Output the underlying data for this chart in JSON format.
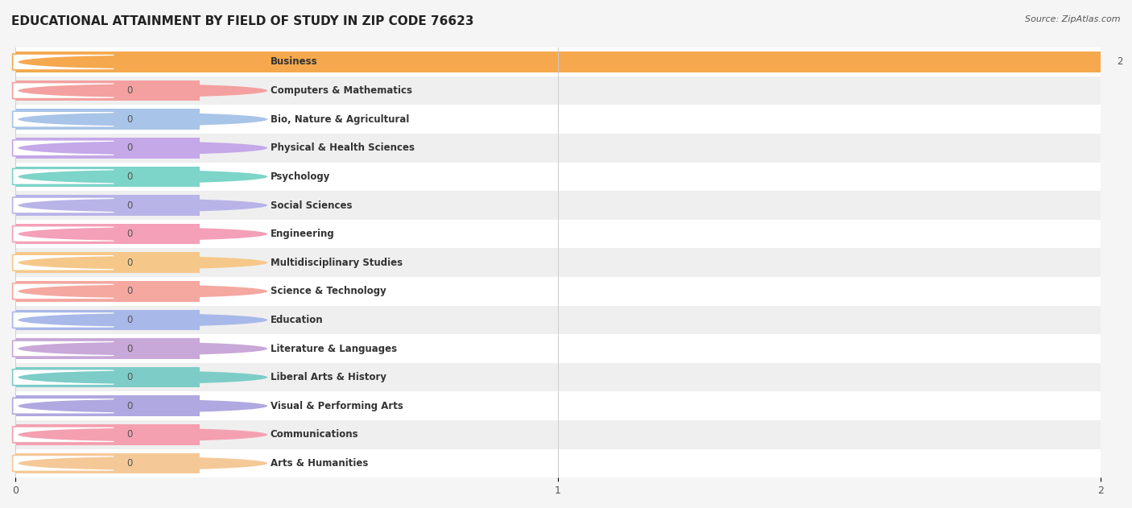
{
  "title": "EDUCATIONAL ATTAINMENT BY FIELD OF STUDY IN ZIP CODE 76623",
  "source": "Source: ZipAtlas.com",
  "categories": [
    "Business",
    "Computers & Mathematics",
    "Bio, Nature & Agricultural",
    "Physical & Health Sciences",
    "Psychology",
    "Social Sciences",
    "Engineering",
    "Multidisciplinary Studies",
    "Science & Technology",
    "Education",
    "Literature & Languages",
    "Liberal Arts & History",
    "Visual & Performing Arts",
    "Communications",
    "Arts & Humanities"
  ],
  "values": [
    2,
    0,
    0,
    0,
    0,
    0,
    0,
    0,
    0,
    0,
    0,
    0,
    0,
    0,
    0
  ],
  "bar_colors": [
    "#f5a84e",
    "#f4a0a0",
    "#a8c4e8",
    "#c4a8e8",
    "#7dd4c8",
    "#b8b4e8",
    "#f4a0b8",
    "#f5c88a",
    "#f4a8a0",
    "#a8b8e8",
    "#c8a8d8",
    "#7dccc8",
    "#b0a8e0",
    "#f4a0b0",
    "#f5c898"
  ],
  "xlim": [
    0,
    2
  ],
  "xticks": [
    0,
    1,
    2
  ],
  "background_color": "#f5f5f5",
  "bar_height": 0.72,
  "title_fontsize": 11,
  "label_fontsize": 8.5,
  "value_fontsize": 8.5,
  "row_colors": [
    "#ffffff",
    "#efefef"
  ]
}
